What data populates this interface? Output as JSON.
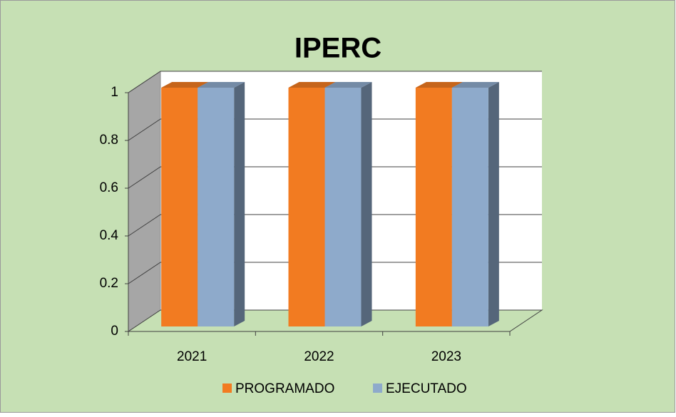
{
  "chart_data": {
    "type": "bar3d",
    "title": "IPERC",
    "categories": [
      "2021",
      "2022",
      "2023"
    ],
    "series": [
      {
        "name": "PROGRAMADO",
        "color": "#f27b21",
        "values": [
          1,
          1,
          1
        ]
      },
      {
        "name": "EJECUTADO",
        "color": "#8eaacb",
        "values": [
          1,
          1,
          1
        ]
      }
    ],
    "ylim": [
      0,
      1
    ],
    "yticks": [
      0,
      0.2,
      0.4,
      0.6,
      0.8,
      1
    ],
    "grid": true,
    "legend": "bottom"
  }
}
